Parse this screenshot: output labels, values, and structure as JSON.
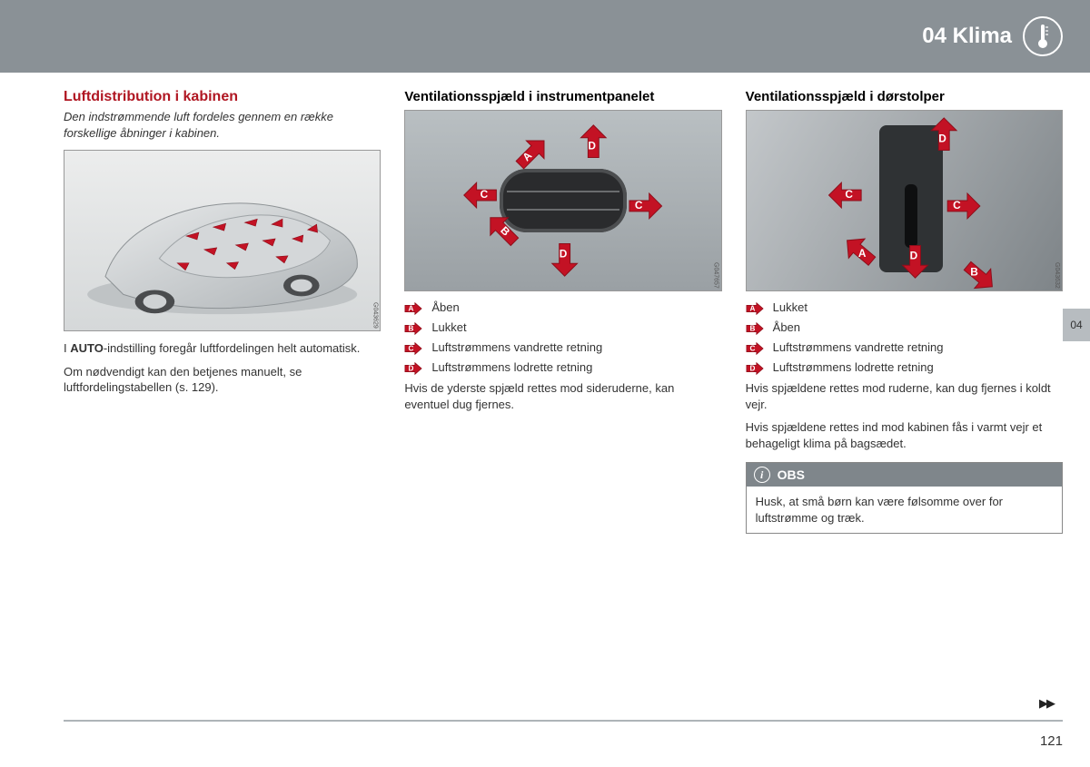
{
  "header": {
    "chapter": "04 Klima"
  },
  "sideTab": "04",
  "pageNumber": "121",
  "col1": {
    "title": "Luftdistribution i kabinen",
    "intro": "Den indstrømmende luft fordeles gennem en række forskellige åbninger i kabinen.",
    "figCode": "G043629",
    "para1_pre": "I ",
    "para1_bold": "AUTO",
    "para1_post": "-indstilling foregår luftfordelingen helt automatisk.",
    "para2": "Om nødvendigt kan den betjenes manuelt, se luftfordelingstabellen (s. 129)."
  },
  "col2": {
    "title": "Ventilationsspjæld i instrumentpanelet",
    "figCode": "G047657",
    "legend": [
      {
        "letter": "A",
        "text": "Åben"
      },
      {
        "letter": "B",
        "text": "Lukket"
      },
      {
        "letter": "C",
        "text": "Luftstrømmens vandrette retning"
      },
      {
        "letter": "D",
        "text": "Luftstrømmens lodrette retning"
      }
    ],
    "para": "Hvis de yderste spjæld rettes mod sideruderne, kan eventuel dug fjernes."
  },
  "col3": {
    "title": "Ventilationsspjæld i dørstolper",
    "figCode": "G043632",
    "legend": [
      {
        "letter": "A",
        "text": "Lukket"
      },
      {
        "letter": "B",
        "text": "Åben"
      },
      {
        "letter": "C",
        "text": "Luftstrømmens vandrette retning"
      },
      {
        "letter": "D",
        "text": "Luftstrømmens lodrette retning"
      }
    ],
    "para1": "Hvis spjældene rettes mod ruderne, kan dug fjernes i koldt vejr.",
    "para2": "Hvis spjældene rettes ind mod kabinen fås i varmt vejr et behageligt klima på bagsædet.",
    "note": {
      "title": "OBS",
      "body": "Husk, at små børn kan være følsomme over for luftstrømme og træk."
    }
  },
  "colors": {
    "red": "#c31224",
    "redDark": "#8c0e1a",
    "headerGrey": "#8a9196"
  }
}
